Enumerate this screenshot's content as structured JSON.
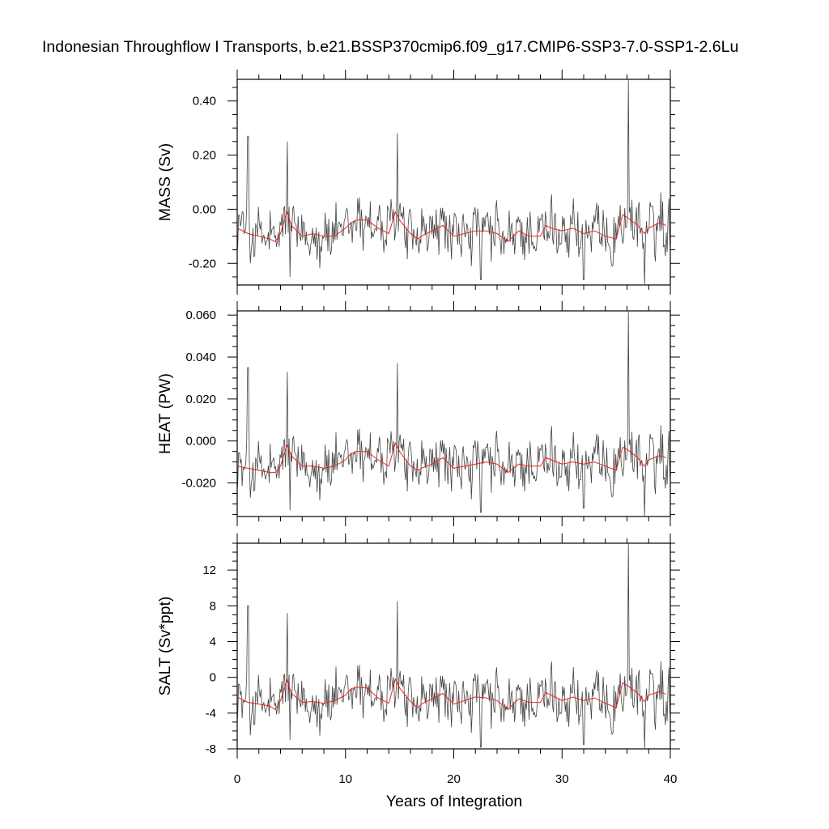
{
  "title": "Indonesian Throughflow I Transports, b.e21.BSSP370cmip6.f09_g17.CMIP6-SSP3-7.0-SSP1-2.6Lu",
  "xlabel": "Years of Integration",
  "colors": {
    "monthly": "#444444",
    "annual": "#e8241f",
    "frame": "#000000"
  },
  "chart_data": [
    {
      "type": "line",
      "ylabel": "MASS (Sv)",
      "xlim": [
        0,
        40
      ],
      "ylim": [
        -0.28,
        0.48
      ],
      "x_ticks": [
        "0",
        "10",
        "20",
        "30",
        "40"
      ],
      "y_ticks": [
        {
          "value": 0.4,
          "label": "0.40"
        },
        {
          "value": 0.2,
          "label": "0.20"
        },
        {
          "value": 0.0,
          "label": "0.00"
        },
        {
          "value": -0.2,
          "label": "-0.20"
        }
      ],
      "monthly_peaks": [
        {
          "x": 0.5,
          "y": -0.01
        },
        {
          "x": 1.0,
          "y": 0.27
        },
        {
          "x": 1.2,
          "y": -0.2
        },
        {
          "x": 4.6,
          "y": 0.25
        },
        {
          "x": 4.9,
          "y": -0.25
        },
        {
          "x": 14.8,
          "y": 0.28
        },
        {
          "x": 22.5,
          "y": -0.26
        },
        {
          "x": 32.0,
          "y": -0.26
        },
        {
          "x": 36.1,
          "y": 0.48
        },
        {
          "x": 37.6,
          "y": -0.28
        }
      ],
      "series": [
        {
          "x": [
            0,
            1,
            2,
            3,
            3.5,
            4,
            4.6,
            5,
            6,
            7,
            8,
            9,
            10,
            10.5,
            11,
            12,
            13,
            14,
            14.6,
            15,
            16,
            16.7,
            17,
            18,
            19,
            20,
            21,
            22,
            23,
            24,
            25,
            26,
            27,
            28,
            28.5,
            29,
            30,
            31,
            32,
            33,
            34,
            35,
            35.6,
            36,
            37,
            37.6,
            38,
            39,
            39.6
          ],
          "y": [
            -0.07,
            -0.09,
            -0.1,
            -0.11,
            -0.12,
            -0.09,
            -0.01,
            -0.06,
            -0.1,
            -0.09,
            -0.1,
            -0.1,
            -0.07,
            -0.05,
            -0.04,
            -0.04,
            -0.07,
            -0.09,
            -0.01,
            -0.04,
            -0.09,
            -0.11,
            -0.1,
            -0.08,
            -0.06,
            -0.1,
            -0.09,
            -0.08,
            -0.08,
            -0.09,
            -0.12,
            -0.08,
            -0.1,
            -0.1,
            -0.06,
            -0.07,
            -0.08,
            -0.07,
            -0.09,
            -0.08,
            -0.1,
            -0.11,
            -0.02,
            -0.03,
            -0.06,
            -0.09,
            -0.07,
            -0.05,
            -0.06
          ]
        }
      ]
    },
    {
      "type": "line",
      "ylabel": "HEAT (PW)",
      "xlim": [
        0,
        40
      ],
      "ylim": [
        -0.036,
        0.062
      ],
      "x_ticks": [
        "0",
        "10",
        "20",
        "30",
        "40"
      ],
      "y_ticks": [
        {
          "value": 0.06,
          "label": "0.060"
        },
        {
          "value": 0.04,
          "label": "0.040"
        },
        {
          "value": 0.02,
          "label": "0.020"
        },
        {
          "value": 0.0,
          "label": "0.000"
        },
        {
          "value": -0.02,
          "label": "-0.020"
        }
      ],
      "monthly_peaks": [
        {
          "x": 1.0,
          "y": 0.035
        },
        {
          "x": 1.2,
          "y": -0.027
        },
        {
          "x": 4.6,
          "y": 0.033
        },
        {
          "x": 4.9,
          "y": -0.033
        },
        {
          "x": 14.8,
          "y": 0.037
        },
        {
          "x": 22.5,
          "y": -0.034
        },
        {
          "x": 32.0,
          "y": -0.032
        },
        {
          "x": 36.1,
          "y": 0.062
        },
        {
          "x": 37.6,
          "y": -0.036
        }
      ],
      "series": [
        {
          "x": [
            0,
            1,
            2,
            3,
            3.5,
            4,
            4.6,
            5,
            6,
            7,
            8,
            9,
            10,
            10.5,
            11,
            12,
            13,
            14,
            14.6,
            15,
            16,
            16.7,
            17,
            18,
            19,
            20,
            21,
            22,
            23,
            24,
            25,
            26,
            27,
            28,
            28.5,
            29,
            30,
            31,
            32,
            33,
            34,
            35,
            35.6,
            36,
            37,
            37.6,
            38,
            39,
            39.6
          ],
          "y": [
            -0.012,
            -0.013,
            -0.014,
            -0.015,
            -0.015,
            -0.012,
            -0.002,
            -0.007,
            -0.012,
            -0.012,
            -0.013,
            -0.012,
            -0.009,
            -0.006,
            -0.005,
            -0.005,
            -0.009,
            -0.012,
            -0.001,
            -0.005,
            -0.012,
            -0.014,
            -0.013,
            -0.011,
            -0.008,
            -0.013,
            -0.012,
            -0.011,
            -0.01,
            -0.011,
            -0.015,
            -0.011,
            -0.012,
            -0.012,
            -0.008,
            -0.009,
            -0.011,
            -0.01,
            -0.011,
            -0.01,
            -0.012,
            -0.014,
            -0.003,
            -0.004,
            -0.008,
            -0.012,
            -0.009,
            -0.007,
            -0.008
          ]
        }
      ]
    },
    {
      "type": "line",
      "ylabel": "SALT (Sv*ppt)",
      "xlim": [
        0,
        40
      ],
      "ylim": [
        -8,
        15
      ],
      "x_ticks": [
        "0",
        "10",
        "20",
        "30",
        "40"
      ],
      "y_ticks": [
        {
          "value": 12,
          "label": "12"
        },
        {
          "value": 8,
          "label": "8"
        },
        {
          "value": 4,
          "label": "4"
        },
        {
          "value": 0,
          "label": "0"
        },
        {
          "value": -4,
          "label": "-4"
        },
        {
          "value": -8,
          "label": "-8"
        }
      ],
      "monthly_peaks": [
        {
          "x": 1.0,
          "y": 8.0
        },
        {
          "x": 1.2,
          "y": -6.5
        },
        {
          "x": 4.6,
          "y": 7.2
        },
        {
          "x": 4.9,
          "y": -7.0
        },
        {
          "x": 14.8,
          "y": 8.5
        },
        {
          "x": 22.5,
          "y": -7.8
        },
        {
          "x": 32.0,
          "y": -7.5
        },
        {
          "x": 36.1,
          "y": 15.0
        },
        {
          "x": 37.6,
          "y": -8.0
        }
      ],
      "series": [
        {
          "x": [
            0,
            1,
            2,
            3,
            3.5,
            4,
            4.6,
            5,
            6,
            7,
            8,
            9,
            10,
            10.5,
            11,
            12,
            13,
            14,
            14.6,
            15,
            16,
            16.7,
            17,
            18,
            19,
            20,
            21,
            22,
            23,
            24,
            25,
            26,
            27,
            28,
            28.5,
            29,
            30,
            31,
            32,
            33,
            34,
            35,
            35.6,
            36,
            37,
            37.6,
            38,
            39,
            39.6
          ],
          "y": [
            -2.2,
            -2.8,
            -3.0,
            -3.2,
            -3.6,
            -2.6,
            -0.3,
            -1.8,
            -2.8,
            -2.7,
            -2.9,
            -2.6,
            -2.0,
            -1.3,
            -1.1,
            -1.2,
            -2.3,
            -2.9,
            -0.2,
            -1.2,
            -2.7,
            -3.4,
            -3.0,
            -2.4,
            -1.8,
            -3.0,
            -2.6,
            -2.2,
            -2.3,
            -2.6,
            -3.6,
            -2.4,
            -2.8,
            -2.8,
            -1.7,
            -2.0,
            -2.6,
            -2.2,
            -2.6,
            -2.3,
            -2.9,
            -3.4,
            -0.6,
            -0.9,
            -1.8,
            -2.7,
            -2.0,
            -1.6,
            -1.9
          ]
        }
      ]
    }
  ]
}
